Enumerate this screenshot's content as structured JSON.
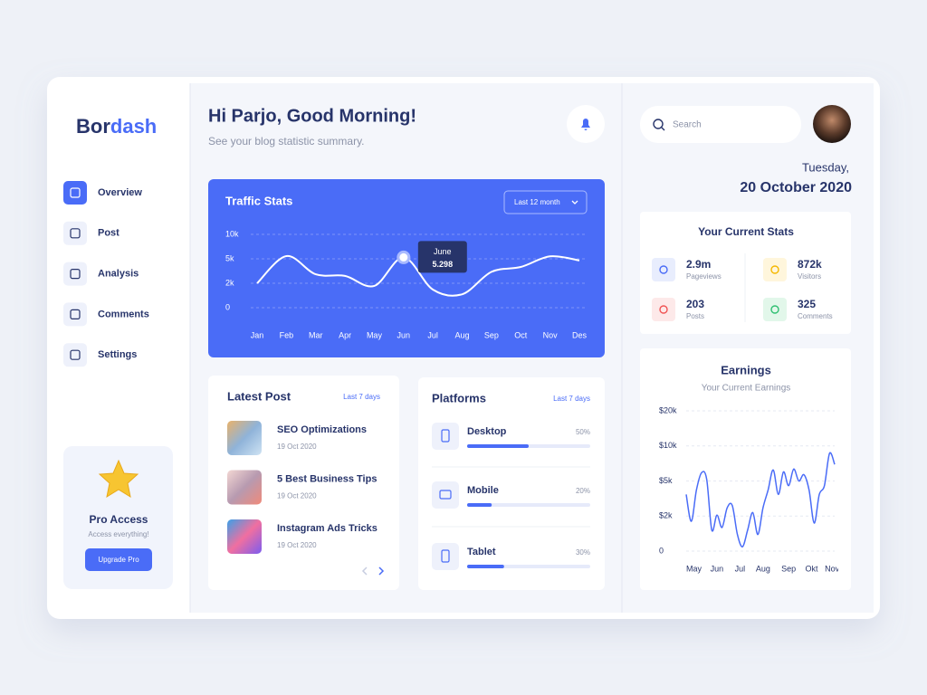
{
  "sidebar": {
    "brand": [
      "Bor",
      "dash"
    ],
    "nav": [
      "Overview",
      "Post",
      "Analysis",
      "Comments",
      "Settings"
    ],
    "pro": {
      "title": "Pro Access",
      "subtitle": "Access everything!",
      "button": "Upgrade Pro"
    }
  },
  "header": {
    "greeting": "Hi Parjo, Good Morning!",
    "subtitle": "See your blog statistic summary."
  },
  "topbar": {
    "search_placeholder": "Search",
    "day": "Tuesday,",
    "date": "20 October 2020"
  },
  "chart_data": [
    {
      "type": "line",
      "title": "Traffic Stats",
      "period": "Last 12 month",
      "categories": [
        "Jan",
        "Feb",
        "Mar",
        "Apr",
        "May",
        "Jun",
        "Jul",
        "Aug",
        "Sep",
        "Oct",
        "Nov",
        "Des"
      ],
      "values": [
        2000,
        5550,
        3100,
        2900,
        1780,
        5298,
        1480,
        1100,
        3400,
        4000,
        5500,
        4800
      ],
      "value_labels": [
        null,
        null,
        null,
        null,
        null,
        "5.298",
        null,
        null,
        null,
        null,
        null,
        null
      ],
      "tooltip_title": "June",
      "color": "#ffffff",
      "ylim": [
        0,
        10000
      ],
      "yticks": [
        0,
        {
          "value": 2000,
          "label": "2k"
        },
        {
          "value": 5000,
          "label": "5k"
        },
        {
          "value": 10000,
          "label": "10k"
        }
      ],
      "y_scale": "tick-spaced",
      "grid": true
    },
    {
      "type": "line",
      "title": "Earnings",
      "subtitle": "Your Current Earnings",
      "x": [
        0,
        1,
        2,
        3,
        4,
        5,
        6,
        7,
        8,
        9,
        10,
        11,
        12,
        13,
        14,
        15,
        16,
        17,
        18,
        19,
        20,
        21,
        22,
        23,
        24,
        25,
        26,
        27,
        28,
        29
      ],
      "values": [
        3850,
        1700,
        4230,
        6180,
        5260,
        1200,
        2080,
        1350,
        2700,
        2900,
        950,
        250,
        1200,
        2300,
        950,
        2700,
        4230,
        6580,
        3850,
        6300,
        4600,
        6700,
        5000,
        5900,
        4230,
        1600,
        3850,
        4600,
        8950,
        7370
      ],
      "color": "#4a6cf7",
      "xlim": [
        0,
        29
      ],
      "xticks": [
        {
          "value": 1.5,
          "label": "May"
        },
        {
          "value": 6,
          "label": "Jun"
        },
        {
          "value": 10.5,
          "label": "Jul"
        },
        {
          "value": 15,
          "label": "Aug"
        },
        {
          "value": 20,
          "label": "Sep"
        },
        {
          "value": 24.5,
          "label": "Okt"
        },
        {
          "value": 28.5,
          "label": "Nov"
        }
      ],
      "ylim": [
        0,
        20000
      ],
      "yticks": [
        0,
        {
          "value": 2000,
          "label": "$2k"
        },
        {
          "value": 5000,
          "label": "$5k"
        },
        {
          "value": 10000,
          "label": "$10k"
        },
        {
          "value": 20000,
          "label": "$20k"
        }
      ],
      "y_scale": "tick-spaced",
      "grid": true
    }
  ],
  "latest_post": {
    "title": "Latest Post",
    "period": "Last 7 days",
    "posts": [
      {
        "title": "SEO Optimizations",
        "date": "19 Oct 2020"
      },
      {
        "title": "5 Best Business Tips",
        "date": "19 Oct 2020"
      },
      {
        "title": "Instagram Ads Tricks",
        "date": "19 Oct 2020"
      }
    ]
  },
  "platforms": {
    "title": "Platforms",
    "period": "Last 7 days",
    "xlim": [
      0,
      100
    ],
    "items": [
      {
        "name": "Desktop",
        "value": 50,
        "value_label": "50%"
      },
      {
        "name": "Mobile",
        "value": 20,
        "value_label": "20%"
      },
      {
        "name": "Tablet",
        "value": 30,
        "value_label": "30%"
      }
    ]
  },
  "current_stats": {
    "title": "Your Current Stats",
    "items": [
      {
        "value": "2.9m",
        "label": "Pageviews"
      },
      {
        "value": "872k",
        "label": "Visitors"
      },
      {
        "value": "203",
        "label": "Posts"
      },
      {
        "value": "325",
        "label": "Comments"
      }
    ]
  }
}
